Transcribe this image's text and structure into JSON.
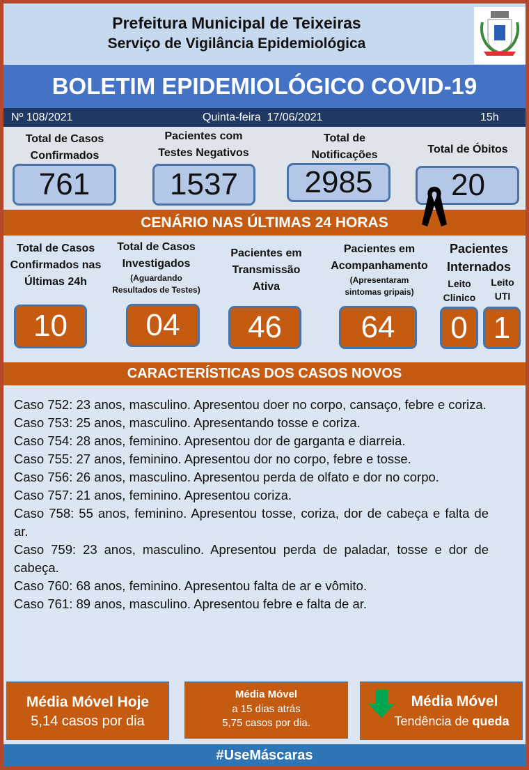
{
  "header": {
    "line1": "Prefeitura Municipal de Teixeiras",
    "line2": "Serviço de Vigilância Epidemiológica",
    "logo": "coat-of-arms-teixeiras"
  },
  "title": "BOLETIM EPIDEMIOLÓGICO COVID-19",
  "info": {
    "number": "Nº 108/2021",
    "date": "Quinta-feira  17/06/2021",
    "hour": "15h"
  },
  "totals": [
    {
      "label1": "Total de Casos",
      "label2": "Confirmados",
      "value": "761"
    },
    {
      "label1": "Pacientes com",
      "label2": "Testes Negativos",
      "value": "1537"
    },
    {
      "label1": "Total de",
      "label2": "Notificações",
      "value": "2985"
    },
    {
      "label1": "Total de Óbitos",
      "value": "20"
    }
  ],
  "scenario": {
    "title": "CENÁRIO NAS ÚLTIMAS 24 HORAS",
    "items": [
      {
        "l1": "Total de Casos",
        "l2": "Confirmados nas",
        "l3": "Últimas 24h",
        "value": "10"
      },
      {
        "l1": "Total de Casos",
        "l2": "Investigados",
        "s1": "(Aguardando",
        "s2": "Resultados de Testes)",
        "value": "04"
      },
      {
        "l1": "Pacientes em",
        "l2": "Transmissão",
        "l3": "Ativa",
        "value": "46"
      },
      {
        "l1": "Pacientes em",
        "l2": "Acompanhamento",
        "s1": "(Apresentaram",
        "s2": "sintomas gripais)",
        "value": "64"
      }
    ],
    "hosp": {
      "l1": "Pacientes",
      "l2": "Internados",
      "clin1": "Leito",
      "clin2": "Clinico",
      "clin_value": "0",
      "uti1": "Leito",
      "uti2": "UTI",
      "uti_value": "1"
    }
  },
  "cases": {
    "title": "CARACTERÍSTICAS DOS CASOS NOVOS",
    "list": [
      "Caso 752: 23 anos, masculino. Apresentou doer no corpo, cansaço, febre e coriza.",
      "Caso 753: 25 anos, masculino. Apresentando tosse e coriza.",
      "Caso 754: 28 anos, feminino. Apresentou dor de garganta e diarreia.",
      "Caso 755: 27 anos, feminino. Apresentou dor no corpo, febre e tosse.",
      "Caso 756: 26 anos, masculino. Apresentou perda de olfato e dor no corpo.",
      "Caso 757: 21 anos, feminino. Apresentou coriza.",
      "Caso 758: 55 anos, feminino. Apresentou tosse, coriza, dor de cabeça e falta de ar.",
      "Caso 759: 23 anos, masculino. Apresentou perda de paladar, tosse e dor de cabeça.",
      "Caso 760: 68 anos, feminino. Apresentou falta de ar e vômito.",
      "Caso 761: 89 anos, masculino. Apresentou febre e falta de ar."
    ]
  },
  "moving_avg": {
    "today_title": "Média Móvel Hoje",
    "today_value": "5,14 casos por dia",
    "past_title": "Média Móvel",
    "past_sub": "a 15 dias atrás",
    "past_value": "5,75 casos por dia.",
    "trend_title": "Média Móvel",
    "trend_prefix": "Tendência de ",
    "trend_word": "queda",
    "trend_icon": "green-down-arrow",
    "trend_color": "#00a650"
  },
  "footer": "#UseMáscaras"
}
